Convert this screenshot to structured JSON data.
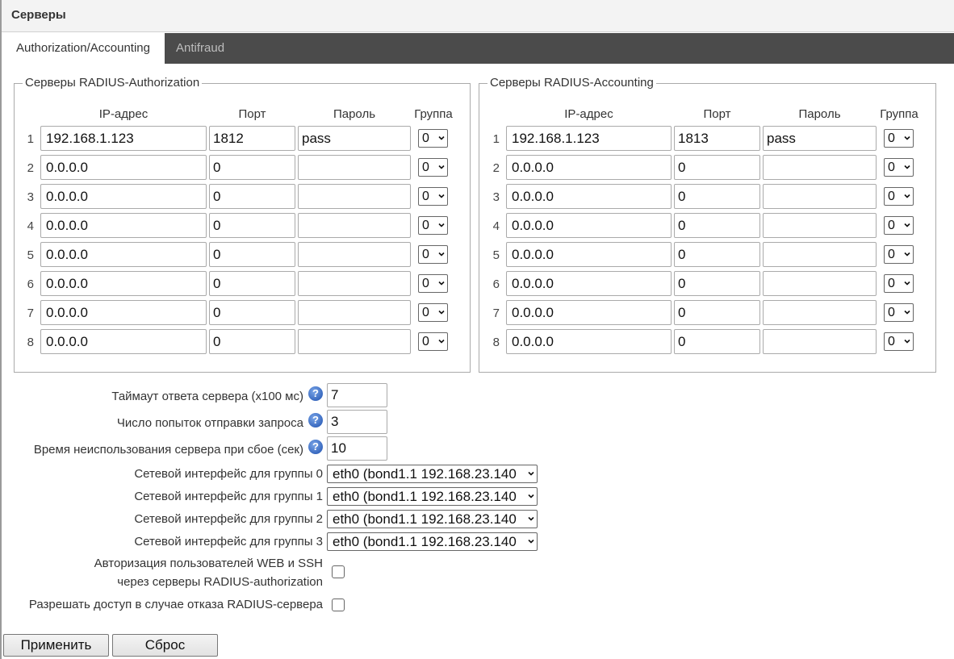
{
  "header": {
    "title": "Серверы"
  },
  "tabs": [
    {
      "label": "Authorization/Accounting",
      "active": true
    },
    {
      "label": "Antifraud",
      "active": false
    }
  ],
  "columns": {
    "ip": "IP-адрес",
    "port": "Порт",
    "password": "Пароль",
    "group": "Группа"
  },
  "auth": {
    "legend": "Серверы RADIUS-Authorization",
    "rows": [
      {
        "n": "1",
        "ip": "192.168.1.123",
        "port": "1812",
        "password": "pass",
        "group": "0"
      },
      {
        "n": "2",
        "ip": "0.0.0.0",
        "port": "0",
        "password": "",
        "group": "0"
      },
      {
        "n": "3",
        "ip": "0.0.0.0",
        "port": "0",
        "password": "",
        "group": "0"
      },
      {
        "n": "4",
        "ip": "0.0.0.0",
        "port": "0",
        "password": "",
        "group": "0"
      },
      {
        "n": "5",
        "ip": "0.0.0.0",
        "port": "0",
        "password": "",
        "group": "0"
      },
      {
        "n": "6",
        "ip": "0.0.0.0",
        "port": "0",
        "password": "",
        "group": "0"
      },
      {
        "n": "7",
        "ip": "0.0.0.0",
        "port": "0",
        "password": "",
        "group": "0"
      },
      {
        "n": "8",
        "ip": "0.0.0.0",
        "port": "0",
        "password": "",
        "group": "0"
      }
    ]
  },
  "acct": {
    "legend": "Серверы RADIUS-Accounting",
    "rows": [
      {
        "n": "1",
        "ip": "192.168.1.123",
        "port": "1813",
        "password": "pass",
        "group": "0"
      },
      {
        "n": "2",
        "ip": "0.0.0.0",
        "port": "0",
        "password": "",
        "group": "0"
      },
      {
        "n": "3",
        "ip": "0.0.0.0",
        "port": "0",
        "password": "",
        "group": "0"
      },
      {
        "n": "4",
        "ip": "0.0.0.0",
        "port": "0",
        "password": "",
        "group": "0"
      },
      {
        "n": "5",
        "ip": "0.0.0.0",
        "port": "0",
        "password": "",
        "group": "0"
      },
      {
        "n": "6",
        "ip": "0.0.0.0",
        "port": "0",
        "password": "",
        "group": "0"
      },
      {
        "n": "7",
        "ip": "0.0.0.0",
        "port": "0",
        "password": "",
        "group": "0"
      },
      {
        "n": "8",
        "ip": "0.0.0.0",
        "port": "0",
        "password": "",
        "group": "0"
      }
    ]
  },
  "settings": {
    "timeout": {
      "label": "Таймаут ответа сервера (x100 мс)",
      "value": "7"
    },
    "retries": {
      "label": "Число попыток отправки запроса",
      "value": "3"
    },
    "deadtime": {
      "label": "Время неиспользования сервера при сбое (сек)",
      "value": "10"
    },
    "help_icon": "?",
    "interfaces": [
      {
        "label": "Сетевой интерфейс для группы 0",
        "value": "eth0 (bond1.1 192.168.23.140"
      },
      {
        "label": "Сетевой интерфейс для группы 1",
        "value": "eth0 (bond1.1 192.168.23.140"
      },
      {
        "label": "Сетевой интерфейс для группы 2",
        "value": "eth0 (bond1.1 192.168.23.140"
      },
      {
        "label": "Сетевой интерфейс для группы 3",
        "value": "eth0 (bond1.1 192.168.23.140"
      }
    ],
    "web_ssh_auth": {
      "label_line1": "Авторизация пользователей WEB и SSH",
      "label_line2": "через серверы RADIUS-authorization",
      "checked": false
    },
    "allow_on_fail": {
      "label": "Разрешать доступ в случае отказа RADIUS-сервера",
      "checked": false
    }
  },
  "buttons": {
    "apply": "Применить",
    "reset": "Сброс"
  }
}
